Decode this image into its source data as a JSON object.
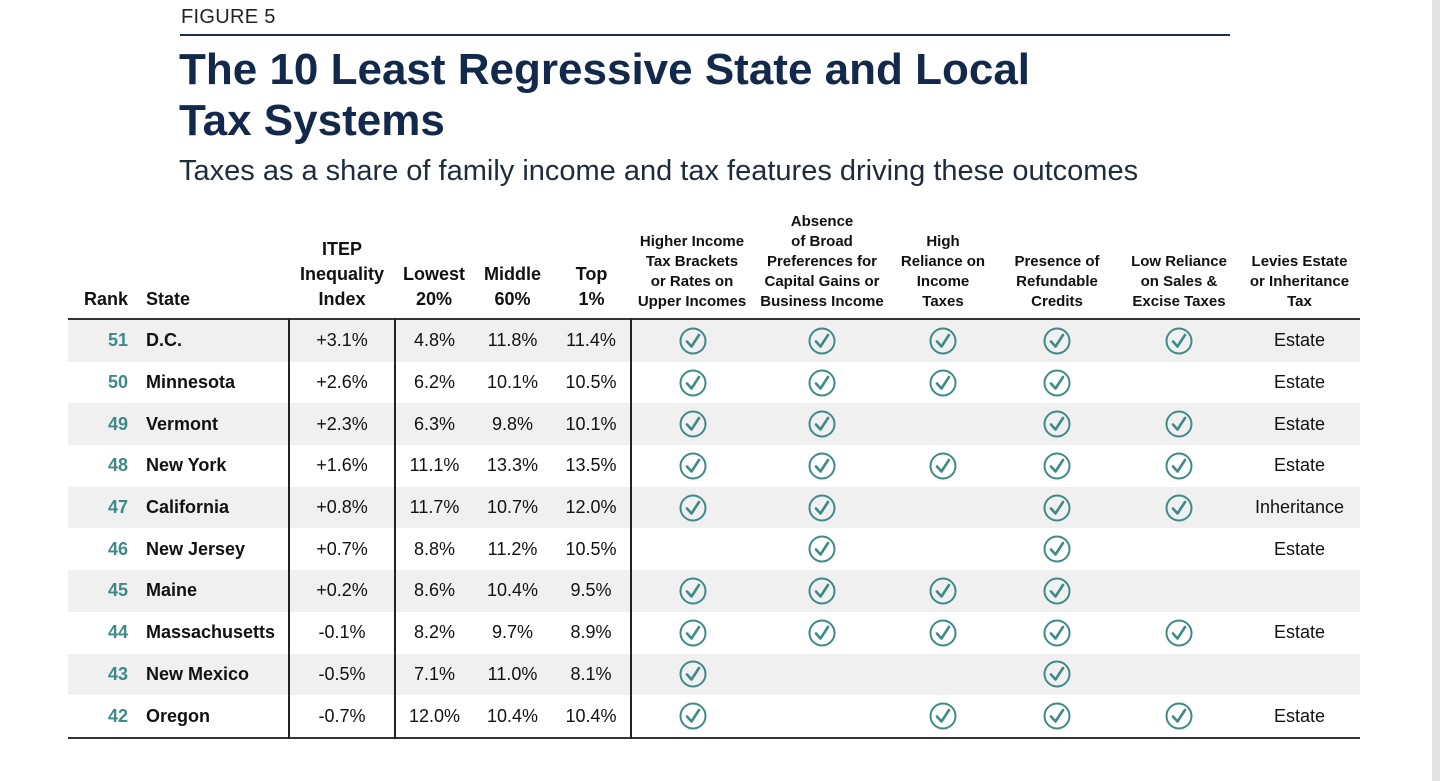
{
  "figure_label": "FIGURE 5",
  "title_line1": "The 10 Least Regressive State and Local",
  "title_line2": "Tax Systems",
  "subtitle": "Taxes as a share of family income and tax features driving these outcomes",
  "check_color": "#3f8a87",
  "columns": {
    "rank": "Rank",
    "state": "State",
    "itep": [
      "ITEP",
      "Inequality",
      "Index"
    ],
    "lowest": [
      "Lowest",
      "20%"
    ],
    "middle": [
      "Middle",
      "60%"
    ],
    "top": [
      "Top",
      "1%"
    ],
    "brackets": [
      "Higher Income",
      "Tax Brackets",
      "or Rates on",
      "Upper Incomes"
    ],
    "cap_gains": [
      "Absence",
      "of Broad",
      "Preferences for",
      "Capital Gains or",
      "Business Income"
    ],
    "income_reliance": [
      "High",
      "Reliance on",
      "Income",
      "Taxes"
    ],
    "credits": [
      "Presence of",
      "Refundable",
      "Credits"
    ],
    "sales": [
      "Low Reliance",
      "on Sales &",
      "Excise Taxes"
    ],
    "estate": [
      "Levies Estate",
      "or Inheritance",
      "Tax"
    ]
  },
  "rows": [
    {
      "rank": "51",
      "state": "D.C.",
      "itep": "+3.1%",
      "lowest": "4.8%",
      "middle": "11.8%",
      "top": "11.4%",
      "checks": [
        true,
        true,
        true,
        true,
        true
      ],
      "estate": "Estate"
    },
    {
      "rank": "50",
      "state": "Minnesota",
      "itep": "+2.6%",
      "lowest": "6.2%",
      "middle": "10.1%",
      "top": "10.5%",
      "checks": [
        true,
        true,
        true,
        true,
        false
      ],
      "estate": "Estate"
    },
    {
      "rank": "49",
      "state": "Vermont",
      "itep": "+2.3%",
      "lowest": "6.3%",
      "middle": "9.8%",
      "top": "10.1%",
      "checks": [
        true,
        true,
        false,
        true,
        true
      ],
      "estate": "Estate"
    },
    {
      "rank": "48",
      "state": "New York",
      "itep": "+1.6%",
      "lowest": "11.1%",
      "middle": "13.3%",
      "top": "13.5%",
      "checks": [
        true,
        true,
        true,
        true,
        true
      ],
      "estate": "Estate"
    },
    {
      "rank": "47",
      "state": "California",
      "itep": "+0.8%",
      "lowest": "11.7%",
      "middle": "10.7%",
      "top": "12.0%",
      "checks": [
        true,
        true,
        false,
        true,
        true
      ],
      "estate": "Inheritance"
    },
    {
      "rank": "46",
      "state": "New Jersey",
      "itep": "+0.7%",
      "lowest": "8.8%",
      "middle": "11.2%",
      "top": "10.5%",
      "checks": [
        false,
        true,
        false,
        true,
        false
      ],
      "estate": "Estate"
    },
    {
      "rank": "45",
      "state": "Maine",
      "itep": "+0.2%",
      "lowest": "8.6%",
      "middle": "10.4%",
      "top": "9.5%",
      "checks": [
        true,
        true,
        true,
        true,
        false
      ],
      "estate": ""
    },
    {
      "rank": "44",
      "state": "Massachusetts",
      "itep": "-0.1%",
      "lowest": "8.2%",
      "middle": "9.7%",
      "top": "8.9%",
      "checks": [
        true,
        true,
        true,
        true,
        true
      ],
      "estate": "Estate"
    },
    {
      "rank": "43",
      "state": "New Mexico",
      "itep": "-0.5%",
      "lowest": "7.1%",
      "middle": "11.0%",
      "top": "8.1%",
      "checks": [
        true,
        false,
        false,
        true,
        false
      ],
      "estate": ""
    },
    {
      "rank": "42",
      "state": "Oregon",
      "itep": "-0.7%",
      "lowest": "12.0%",
      "middle": "10.4%",
      "top": "10.4%",
      "checks": [
        true,
        false,
        true,
        true,
        true
      ],
      "estate": "Estate"
    }
  ]
}
